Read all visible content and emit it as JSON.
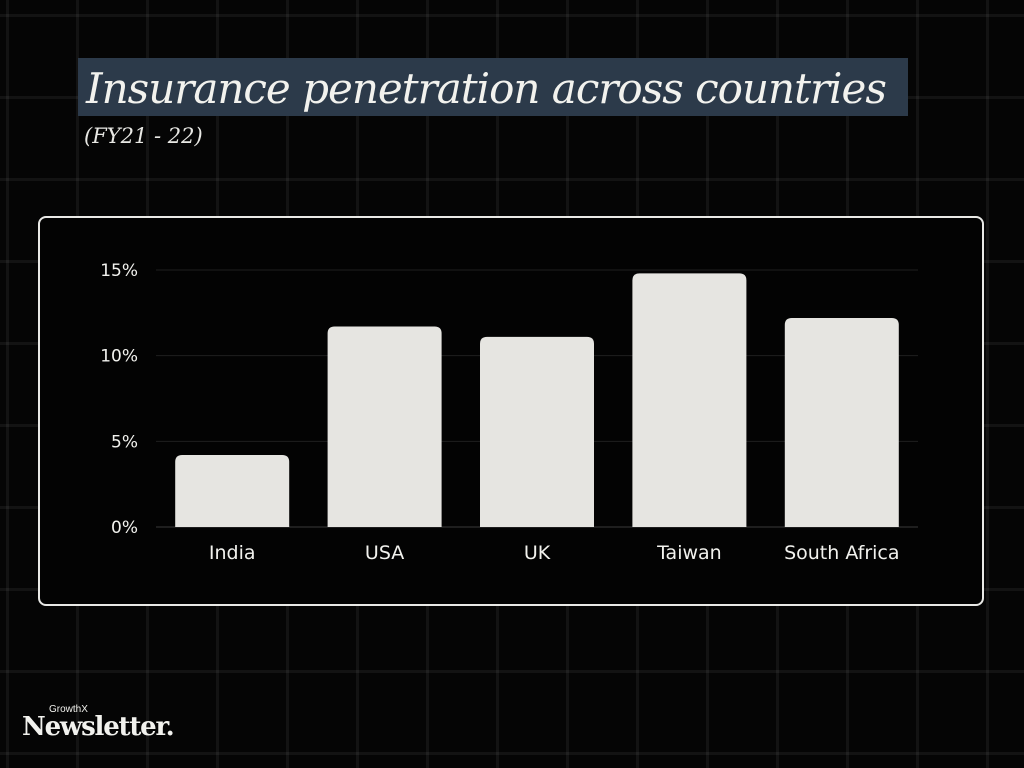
{
  "header": {
    "title": "Insurance penetration across countries",
    "subtitle": "(FY21 - 22)"
  },
  "brand": {
    "top": "GrowthX",
    "main": "Newsletter."
  },
  "colors": {
    "background": "#050505",
    "title_highlight": "#2c3a4a",
    "bar": "#e6e5e1",
    "text": "#f2f2ee"
  },
  "chart_data": {
    "type": "bar",
    "categories": [
      "India",
      "USA",
      "UK",
      "Taiwan",
      "South Africa"
    ],
    "values": [
      4.2,
      11.7,
      11.1,
      14.8,
      12.2
    ],
    "title": "",
    "xlabel": "",
    "ylabel": "",
    "ylim": [
      0,
      15
    ],
    "yticks": [
      0,
      5,
      10,
      15
    ],
    "ytick_labels": [
      "0%",
      "5%",
      "10%",
      "15%"
    ],
    "grid": true,
    "legend": "none"
  }
}
